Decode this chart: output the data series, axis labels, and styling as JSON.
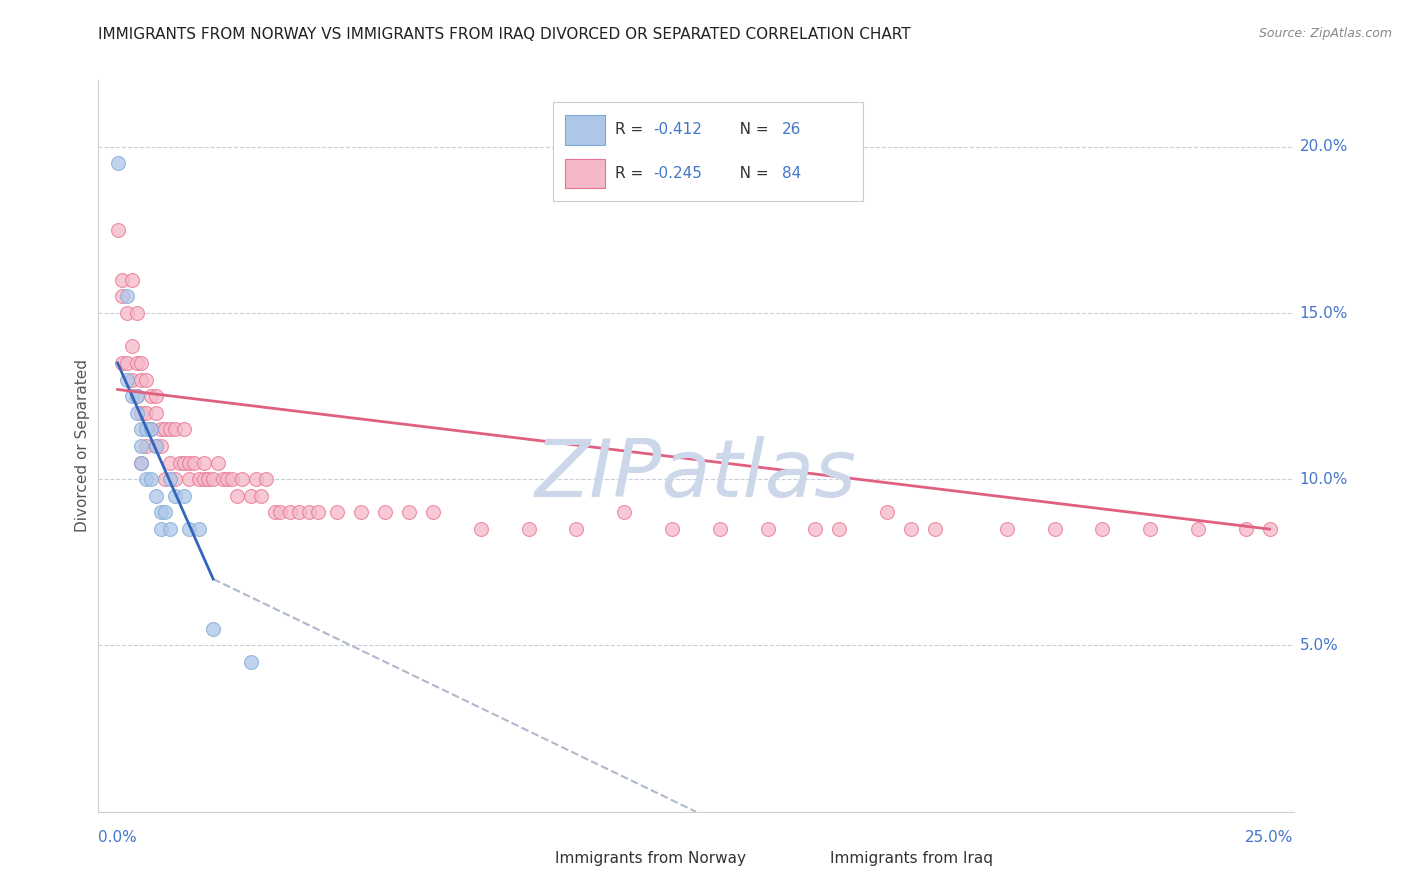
{
  "title": "IMMIGRANTS FROM NORWAY VS IMMIGRANTS FROM IRAQ DIVORCED OR SEPARATED CORRELATION CHART",
  "source": "Source: ZipAtlas.com",
  "ylabel": "Divorced or Separated",
  "xlim": [
    0.0,
    0.25
  ],
  "ylim": [
    0.0,
    0.22
  ],
  "ytick_vals": [
    0.0,
    0.05,
    0.1,
    0.15,
    0.2
  ],
  "norway_color": "#aec6e8",
  "iraq_color": "#f5b8c8",
  "norway_edge_color": "#7ba8d4",
  "iraq_edge_color": "#e87090",
  "norway_line_color": "#3366bb",
  "iraq_line_color": "#e06080",
  "dashed_line_color": "#b0b8cc",
  "watermark": "ZIPatlas",
  "watermark_color": "#ccd8ea",
  "grid_color": "#c8d0dc",
  "background_color": "#ffffff",
  "legend_text_color": "#4477cc",
  "legend_label_color": "#333333",
  "right_axis_color": "#4477cc",
  "norway_x": [
    0.004,
    0.006,
    0.006,
    0.007,
    0.008,
    0.008,
    0.009,
    0.009,
    0.009,
    0.01,
    0.01,
    0.011,
    0.011,
    0.012,
    0.012,
    0.013,
    0.013,
    0.014,
    0.015,
    0.015,
    0.016,
    0.018,
    0.019,
    0.021,
    0.024,
    0.032
  ],
  "norway_y": [
    0.195,
    0.155,
    0.13,
    0.125,
    0.125,
    0.12,
    0.115,
    0.11,
    0.105,
    0.115,
    0.1,
    0.115,
    0.1,
    0.11,
    0.095,
    0.09,
    0.085,
    0.09,
    0.085,
    0.1,
    0.095,
    0.095,
    0.085,
    0.085,
    0.055,
    0.045
  ],
  "iraq_x": [
    0.004,
    0.005,
    0.005,
    0.005,
    0.006,
    0.006,
    0.007,
    0.007,
    0.007,
    0.008,
    0.008,
    0.008,
    0.009,
    0.009,
    0.009,
    0.009,
    0.01,
    0.01,
    0.01,
    0.011,
    0.011,
    0.012,
    0.012,
    0.012,
    0.013,
    0.013,
    0.014,
    0.014,
    0.015,
    0.015,
    0.016,
    0.016,
    0.017,
    0.018,
    0.018,
    0.019,
    0.019,
    0.02,
    0.021,
    0.022,
    0.022,
    0.023,
    0.024,
    0.025,
    0.026,
    0.027,
    0.028,
    0.029,
    0.03,
    0.032,
    0.033,
    0.034,
    0.035,
    0.037,
    0.038,
    0.04,
    0.042,
    0.044,
    0.046,
    0.05,
    0.055,
    0.06,
    0.065,
    0.07,
    0.08,
    0.09,
    0.1,
    0.11,
    0.12,
    0.13,
    0.14,
    0.15,
    0.155,
    0.165,
    0.17,
    0.175,
    0.19,
    0.2,
    0.21,
    0.22,
    0.23,
    0.24,
    0.245
  ],
  "iraq_y": [
    0.175,
    0.16,
    0.155,
    0.135,
    0.15,
    0.135,
    0.16,
    0.14,
    0.13,
    0.15,
    0.135,
    0.125,
    0.135,
    0.13,
    0.12,
    0.105,
    0.13,
    0.12,
    0.11,
    0.125,
    0.115,
    0.125,
    0.12,
    0.11,
    0.115,
    0.11,
    0.115,
    0.1,
    0.115,
    0.105,
    0.115,
    0.1,
    0.105,
    0.115,
    0.105,
    0.105,
    0.1,
    0.105,
    0.1,
    0.105,
    0.1,
    0.1,
    0.1,
    0.105,
    0.1,
    0.1,
    0.1,
    0.095,
    0.1,
    0.095,
    0.1,
    0.095,
    0.1,
    0.09,
    0.09,
    0.09,
    0.09,
    0.09,
    0.09,
    0.09,
    0.09,
    0.09,
    0.09,
    0.09,
    0.085,
    0.085,
    0.085,
    0.09,
    0.085,
    0.085,
    0.085,
    0.085,
    0.085,
    0.09,
    0.085,
    0.085,
    0.085,
    0.085,
    0.085,
    0.085,
    0.085,
    0.085,
    0.085
  ],
  "norway_line_x": [
    0.004,
    0.024
  ],
  "norway_line_y": [
    0.135,
    0.07
  ],
  "iraq_line_x": [
    0.004,
    0.245
  ],
  "iraq_line_y": [
    0.127,
    0.085
  ],
  "dash_line_x": [
    0.024,
    0.125
  ],
  "dash_line_y": [
    0.07,
    0.0
  ]
}
